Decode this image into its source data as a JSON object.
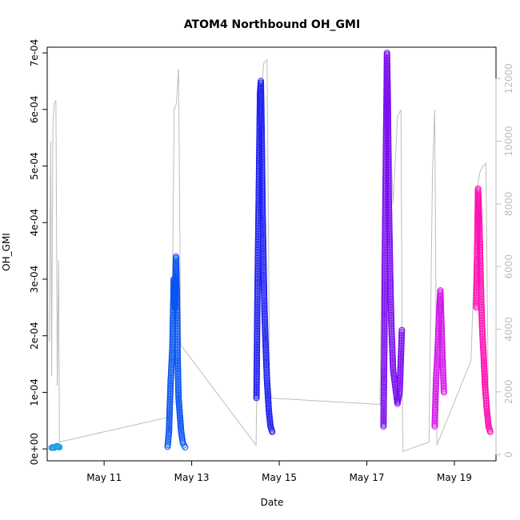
{
  "chart_data": {
    "type": "scatter",
    "title": "ATOM4 Northbound OH_GMI",
    "xlabel": "Date",
    "ylabel": "OH_GMI",
    "y2label": "",
    "xlim": [
      9.7,
      19.95
    ],
    "ylim": [
      -2.1e-05,
      0.00071
    ],
    "y2lim": [
      -200,
      13000
    ],
    "x_ticks": [
      {
        "value": 11,
        "label": "May 11"
      },
      {
        "value": 13,
        "label": "May 13"
      },
      {
        "value": 15,
        "label": "May 15"
      },
      {
        "value": 17,
        "label": "May 17"
      },
      {
        "value": 19,
        "label": "May 19"
      }
    ],
    "y_ticks": [
      {
        "value": 0,
        "label": "0e+00"
      },
      {
        "value": 0.0001,
        "label": "1e-04"
      },
      {
        "value": 0.0002,
        "label": "2e-04"
      },
      {
        "value": 0.0003,
        "label": "3e-04"
      },
      {
        "value": 0.0004,
        "label": "4e-04"
      },
      {
        "value": 0.0005,
        "label": "5e-04"
      },
      {
        "value": 0.0006,
        "label": "6e-04"
      },
      {
        "value": 0.0007,
        "label": "7e-04"
      }
    ],
    "y2_ticks": [
      {
        "value": 0,
        "label": "0"
      },
      {
        "value": 2000,
        "label": "2000"
      },
      {
        "value": 4000,
        "label": "4000"
      },
      {
        "value": 6000,
        "label": "6000"
      },
      {
        "value": 8000,
        "label": "8000"
      },
      {
        "value": 10000,
        "label": "10000"
      },
      {
        "value": 12000,
        "label": "12000"
      }
    ],
    "grid": false,
    "series": [
      {
        "color": "#1e9ee6",
        "points": [
          [
            9.8,
            2e-06
          ],
          [
            9.83,
            3e-06
          ],
          [
            9.86,
            2e-06
          ],
          [
            9.9,
            4e-06
          ],
          [
            9.93,
            5e-06
          ],
          [
            9.96,
            4e-06
          ],
          [
            9.98,
            3e-06
          ]
        ]
      },
      {
        "color": "#0a55f0",
        "points": [
          [
            12.45,
            4e-06
          ],
          [
            12.48,
            3e-05
          ],
          [
            12.52,
            0.00012
          ],
          [
            12.56,
            0.00018
          ],
          [
            12.59,
            0.0003
          ],
          [
            12.62,
            0.00025
          ],
          [
            12.64,
            0.00034
          ],
          [
            12.66,
            0.00028
          ],
          [
            12.68,
            0.00016
          ],
          [
            12.7,
            9e-05
          ],
          [
            12.73,
            6e-05
          ],
          [
            12.76,
            3e-05
          ],
          [
            12.8,
            1e-05
          ],
          [
            12.85,
            3e-06
          ]
        ]
      },
      {
        "color": "#2020f0",
        "points": [
          [
            14.48,
            9e-05
          ],
          [
            14.5,
            0.00026
          ],
          [
            14.52,
            0.00038
          ],
          [
            14.54,
            0.0005
          ],
          [
            14.56,
            0.00063
          ],
          [
            14.58,
            0.00065
          ],
          [
            14.6,
            0.00055
          ],
          [
            14.62,
            0.00042
          ],
          [
            14.64,
            0.00033
          ],
          [
            14.66,
            0.00025
          ],
          [
            14.69,
            0.00018
          ],
          [
            14.72,
            0.00012
          ],
          [
            14.76,
            7e-05
          ],
          [
            14.8,
            4e-05
          ],
          [
            14.84,
            3e-05
          ]
        ]
      },
      {
        "color": "#7a10f0",
        "points": [
          [
            17.38,
            4e-05
          ],
          [
            17.4,
            0.00018
          ],
          [
            17.42,
            0.0004
          ],
          [
            17.44,
            0.00055
          ],
          [
            17.46,
            0.0007
          ],
          [
            17.48,
            0.00062
          ],
          [
            17.5,
            0.00045
          ],
          [
            17.53,
            0.00032
          ],
          [
            17.56,
            0.00022
          ],
          [
            17.6,
            0.00014
          ],
          [
            17.65,
            0.00011
          ],
          [
            17.7,
            8e-05
          ],
          [
            17.75,
            0.0001
          ],
          [
            17.8,
            0.00021
          ]
        ]
      },
      {
        "color": "#d218e8",
        "points": [
          [
            18.55,
            4e-05
          ],
          [
            18.58,
            0.00012
          ],
          [
            18.62,
            0.00018
          ],
          [
            18.65,
            0.00024
          ],
          [
            18.68,
            0.00028
          ],
          [
            18.72,
            0.00018
          ],
          [
            18.76,
            0.0001
          ]
        ]
      },
      {
        "color": "#ff10b4",
        "points": [
          [
            19.5,
            0.00025
          ],
          [
            19.52,
            0.00035
          ],
          [
            19.54,
            0.00046
          ],
          [
            19.57,
            0.0004
          ],
          [
            19.6,
            0.0003
          ],
          [
            19.63,
            0.00022
          ],
          [
            19.67,
            0.00016
          ],
          [
            19.7,
            0.00011
          ],
          [
            19.74,
            7e-05
          ],
          [
            19.78,
            4e-05
          ],
          [
            19.82,
            3e-05
          ]
        ]
      }
    ],
    "altitude_series": {
      "color": "#bdbdbd",
      "points": [
        [
          9.75,
          3600
        ],
        [
          9.78,
          10000
        ],
        [
          9.8,
          2500
        ],
        [
          9.83,
          10500
        ],
        [
          9.86,
          11200
        ],
        [
          9.9,
          11300
        ],
        [
          9.93,
          2200
        ],
        [
          9.96,
          6200
        ],
        [
          9.98,
          400
        ],
        [
          12.5,
          1200
        ],
        [
          12.55,
          3800
        ],
        [
          12.6,
          11000
        ],
        [
          12.65,
          11200
        ],
        [
          12.7,
          12300
        ],
        [
          12.75,
          3500
        ],
        [
          14.47,
          300
        ],
        [
          14.52,
          6000
        ],
        [
          14.56,
          11500
        ],
        [
          14.6,
          11800
        ],
        [
          14.65,
          12500
        ],
        [
          14.72,
          12600
        ],
        [
          14.78,
          2500
        ],
        [
          14.82,
          1800
        ],
        [
          17.3,
          1600
        ],
        [
          17.38,
          10500
        ],
        [
          17.42,
          11800
        ],
        [
          17.46,
          12300
        ],
        [
          17.52,
          11000
        ],
        [
          17.6,
          8000
        ],
        [
          17.7,
          10800
        ],
        [
          17.78,
          11000
        ],
        [
          17.82,
          100
        ],
        [
          18.42,
          400
        ],
        [
          18.5,
          9000
        ],
        [
          18.55,
          11000
        ],
        [
          18.6,
          300
        ],
        [
          19.38,
          3000
        ],
        [
          19.45,
          6000
        ],
        [
          19.52,
          8500
        ],
        [
          19.58,
          9000
        ],
        [
          19.65,
          9200
        ],
        [
          19.72,
          9300
        ],
        [
          19.78,
          1000
        ]
      ]
    }
  }
}
